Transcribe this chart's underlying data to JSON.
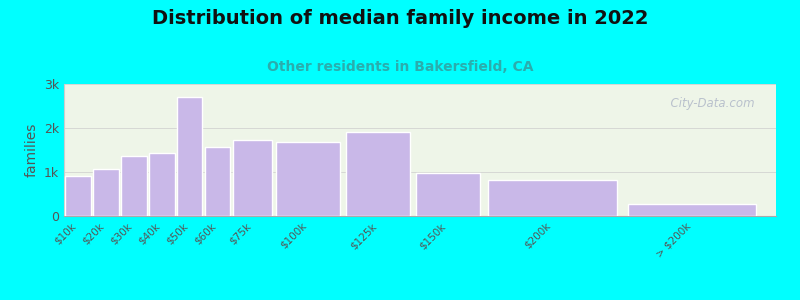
{
  "title": "Distribution of median family income in 2022",
  "subtitle": "Other residents in Bakersfield, CA",
  "ylabel": "families",
  "categories": [
    "$10k",
    "$20k",
    "$30k",
    "$40k",
    "$50k",
    "$60k",
    "$75k",
    "$100k",
    "$125k",
    "$150k",
    "$200k",
    "> $200k"
  ],
  "x_positions": [
    5,
    15,
    25,
    35,
    45,
    55,
    67.5,
    87.5,
    112.5,
    137.5,
    175,
    225
  ],
  "bar_widths": [
    10,
    10,
    10,
    10,
    10,
    10,
    15,
    25,
    25,
    25,
    50,
    50
  ],
  "values": [
    900,
    1075,
    1375,
    1425,
    2700,
    1575,
    1725,
    1675,
    1900,
    975,
    825,
    275
  ],
  "bar_color": "#c9b8e8",
  "bar_edge_color": "#ffffff",
  "background_outer": "#00ffff",
  "background_inner": "#eef5e8",
  "title_fontsize": 14,
  "subtitle_fontsize": 10,
  "subtitle_color": "#2aadad",
  "ylabel_color": "#555555",
  "tick_label_color": "#555555",
  "ylim": [
    0,
    3000
  ],
  "yticks": [
    0,
    1000,
    2000,
    3000
  ],
  "ytick_labels": [
    "0",
    "1k",
    "2k",
    "3k"
  ],
  "watermark": "  City-Data.com"
}
